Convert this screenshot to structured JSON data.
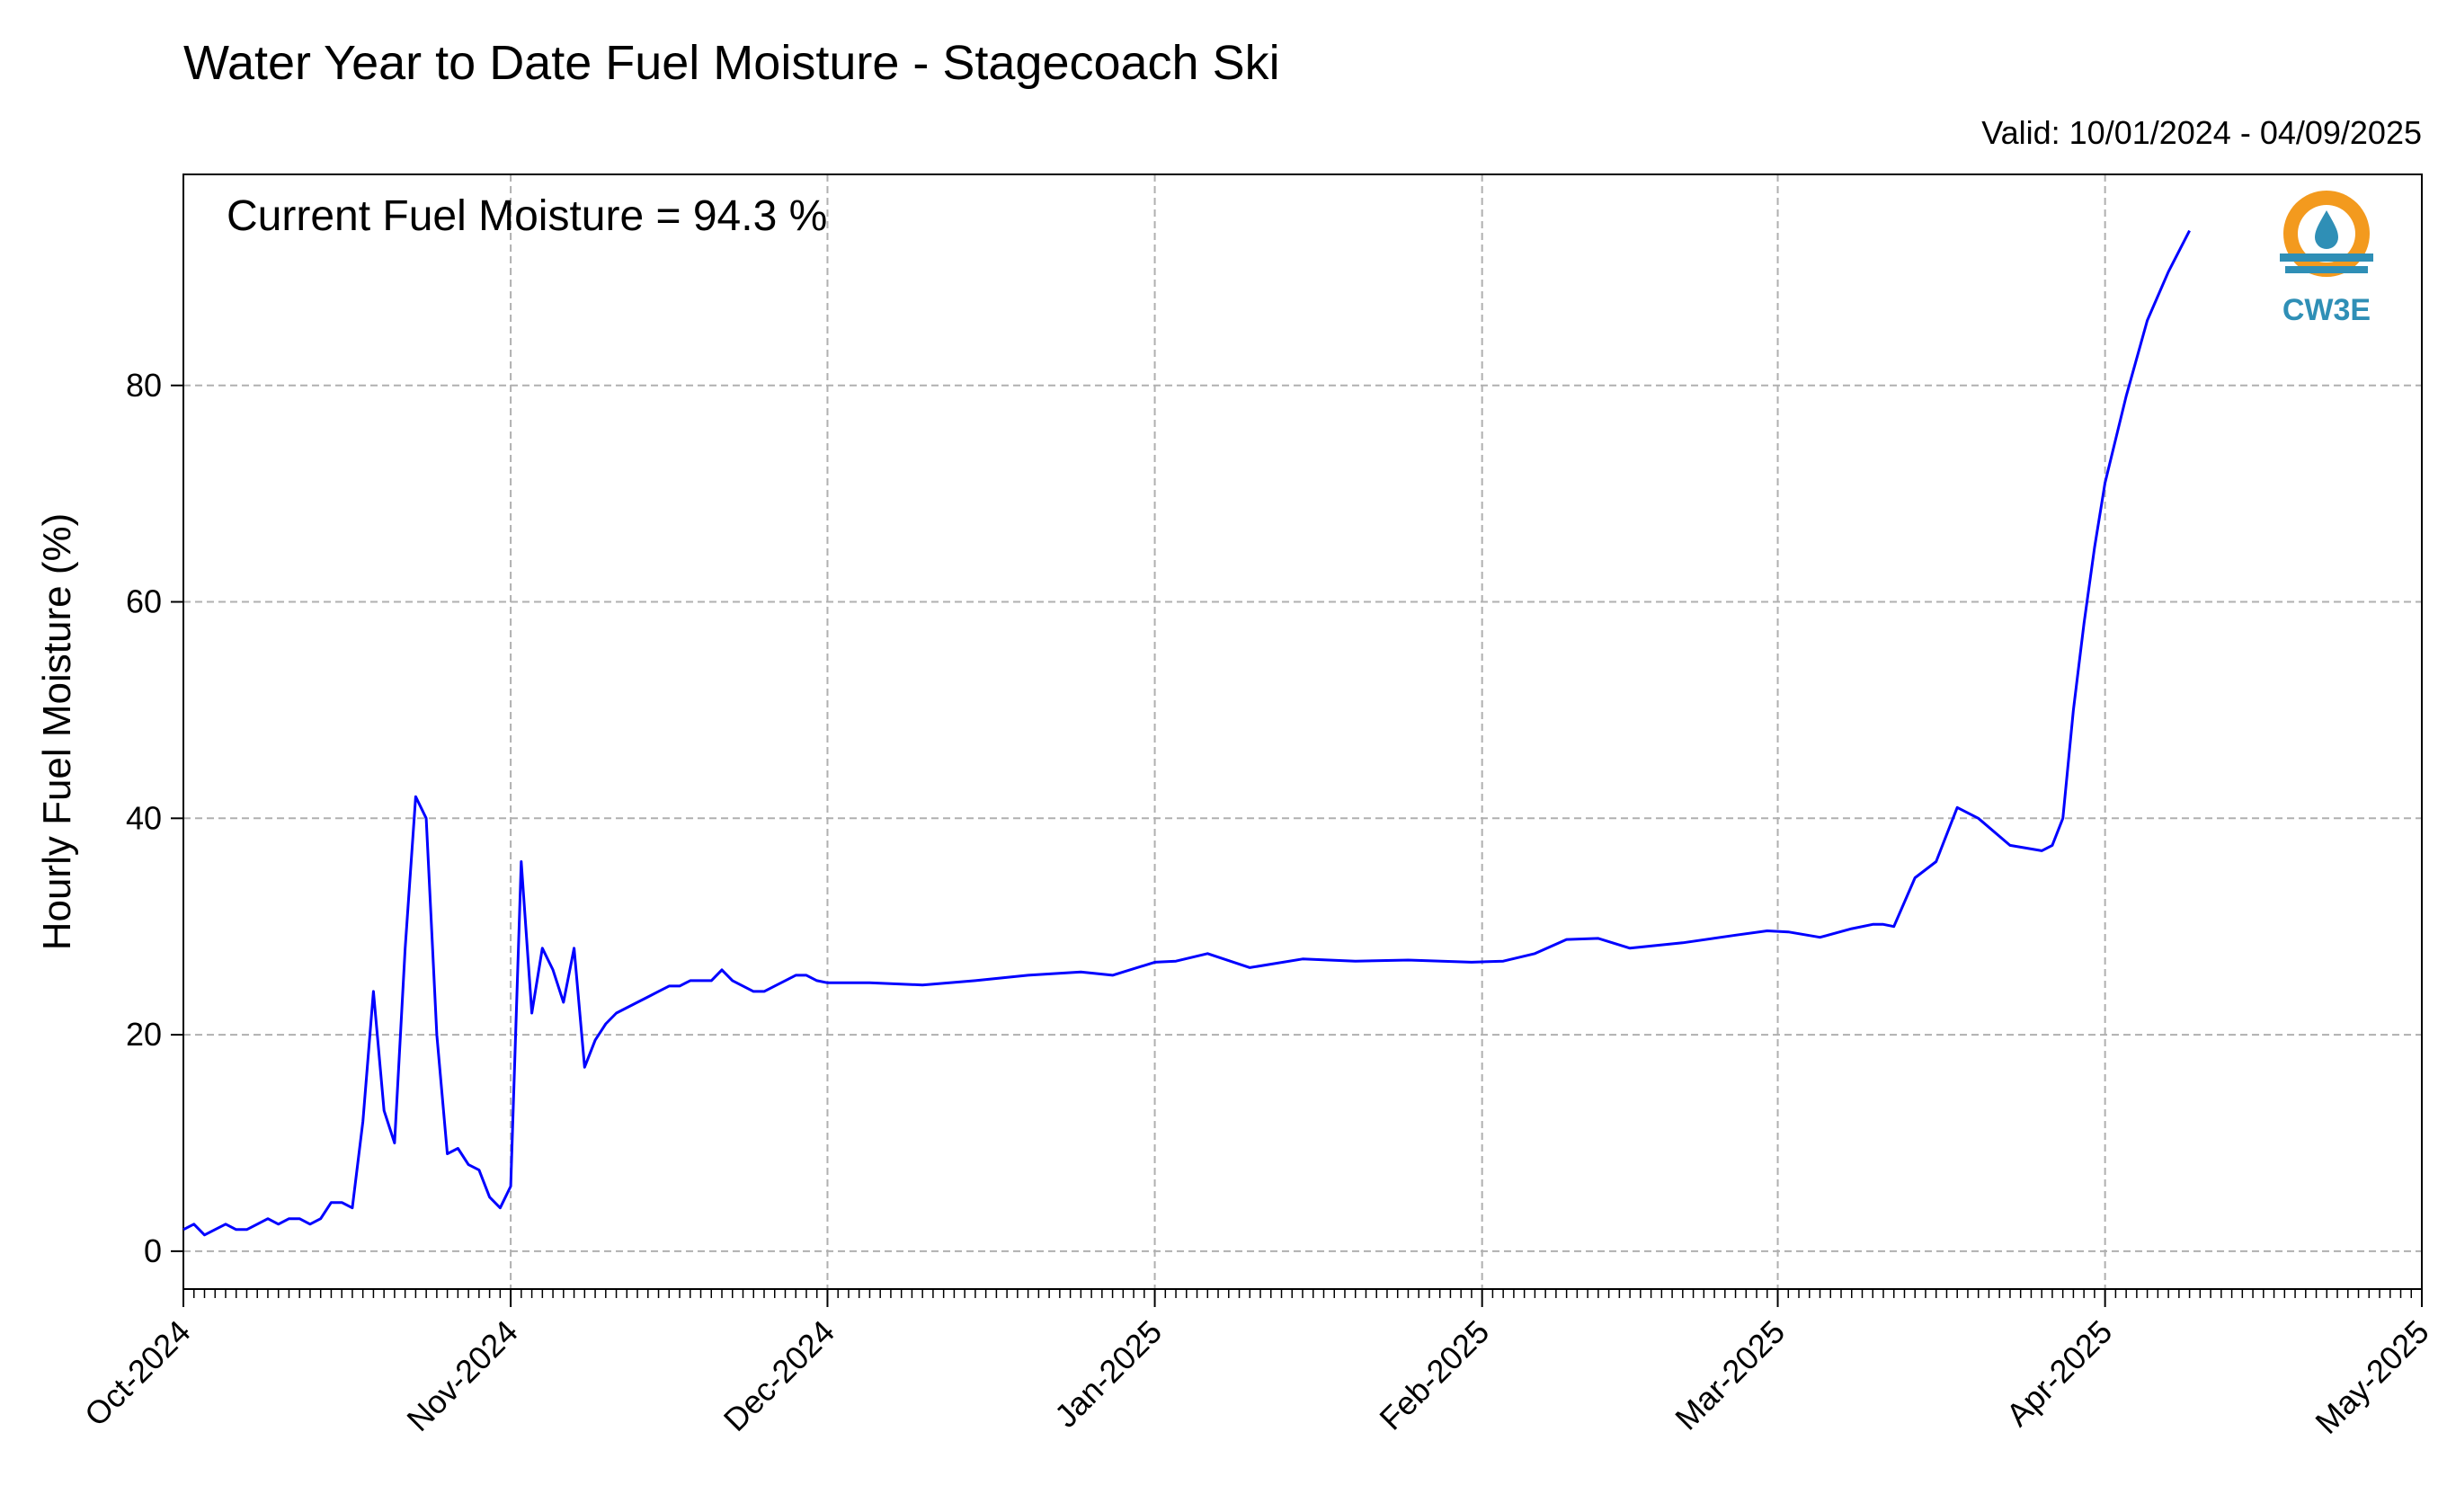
{
  "chart_data": {
    "type": "line",
    "title": "Water Year to Date Fuel Moisture - Stagecoach Ski",
    "subtitle": "Valid: 10/01/2024 - 04/09/2025",
    "annotation": "Current Fuel Moisture = 94.3 %",
    "xlabel": "",
    "ylabel": "Hourly Fuel Moisture (%)",
    "ylim": [
      -3.5,
      99.5
    ],
    "xlim": [
      "2024-10-01",
      "2025-05-01"
    ],
    "yticks": [
      0,
      20,
      40,
      60,
      80
    ],
    "xticks": [
      "Oct-2024",
      "Nov-2024",
      "Dec-2024",
      "Jan-2025",
      "Feb-2025",
      "Mar-2025",
      "Apr-2025",
      "May-2025"
    ],
    "grid": true,
    "line_color": "#0000ff",
    "logo_text": "CW3E",
    "series": [
      {
        "x": [
          "2024-10-01",
          "2024-10-02",
          "2024-10-03",
          "2024-10-04",
          "2024-10-05",
          "2024-10-06",
          "2024-10-07",
          "2024-10-08",
          "2024-10-09",
          "2024-10-10",
          "2024-10-11",
          "2024-10-12",
          "2024-10-13",
          "2024-10-14",
          "2024-10-15",
          "2024-10-16",
          "2024-10-17",
          "2024-10-18",
          "2024-10-19",
          "2024-10-20",
          "2024-10-21",
          "2024-10-22",
          "2024-10-23",
          "2024-10-24",
          "2024-10-25",
          "2024-10-26",
          "2024-10-27",
          "2024-10-28",
          "2024-10-29",
          "2024-10-30",
          "2024-10-31",
          "2024-11-01",
          "2024-11-02",
          "2024-11-03",
          "2024-11-04",
          "2024-11-05",
          "2024-11-06",
          "2024-11-07",
          "2024-11-08",
          "2024-11-09",
          "2024-11-10",
          "2024-11-11",
          "2024-11-12",
          "2024-11-13",
          "2024-11-14",
          "2024-11-15",
          "2024-11-16",
          "2024-11-17",
          "2024-11-18",
          "2024-11-19",
          "2024-11-20",
          "2024-11-21",
          "2024-11-22",
          "2024-11-23",
          "2024-11-24",
          "2024-11-25",
          "2024-11-26",
          "2024-11-27",
          "2024-11-28",
          "2024-11-29",
          "2024-11-30",
          "2024-12-01",
          "2024-12-05",
          "2024-12-10",
          "2024-12-15",
          "2024-12-20",
          "2024-12-25",
          "2024-12-28",
          "2025-01-01",
          "2025-01-03",
          "2025-01-06",
          "2025-01-10",
          "2025-01-15",
          "2025-01-20",
          "2025-01-25",
          "2025-01-31",
          "2025-02-03",
          "2025-02-06",
          "2025-02-09",
          "2025-02-12",
          "2025-02-15",
          "2025-02-20",
          "2025-02-25",
          "2025-02-28",
          "2025-03-02",
          "2025-03-05",
          "2025-03-08",
          "2025-03-10",
          "2025-03-11",
          "2025-03-12",
          "2025-03-14",
          "2025-03-16",
          "2025-03-18",
          "2025-03-20",
          "2025-03-23",
          "2025-03-26",
          "2025-03-27",
          "2025-03-28",
          "2025-03-29",
          "2025-03-30",
          "2025-03-31",
          "2025-04-01",
          "2025-04-03",
          "2025-04-05",
          "2025-04-07",
          "2025-04-09"
        ],
        "y": [
          2,
          2.5,
          1.5,
          2,
          2.5,
          2,
          2,
          2.5,
          3,
          2.5,
          3,
          3,
          2.5,
          3,
          4.5,
          4.5,
          4,
          12,
          24,
          13,
          10,
          28,
          42,
          40,
          20,
          9,
          9.5,
          8,
          7.5,
          5,
          4,
          6,
          36,
          22,
          28,
          26,
          23,
          28,
          17,
          19.5,
          21,
          22,
          22.5,
          23,
          23.5,
          24,
          24.5,
          24.5,
          25,
          25,
          25,
          26,
          25,
          24.5,
          24,
          24,
          24.5,
          25,
          25.5,
          25.5,
          25,
          24.8,
          24.8,
          24.6,
          25,
          25.5,
          25.8,
          25.5,
          26.7,
          26.8,
          27.5,
          26.2,
          27,
          26.8,
          26.9,
          26.7,
          26.8,
          27.5,
          28.8,
          28.9,
          28.0,
          28.5,
          29.2,
          29.6,
          29.5,
          29.0,
          29.8,
          30.2,
          30.2,
          30.0,
          34.5,
          36,
          41,
          40,
          37.5,
          37,
          37.5,
          40,
          50,
          58,
          65,
          71,
          79,
          86,
          90.5,
          94.3
        ]
      }
    ]
  }
}
